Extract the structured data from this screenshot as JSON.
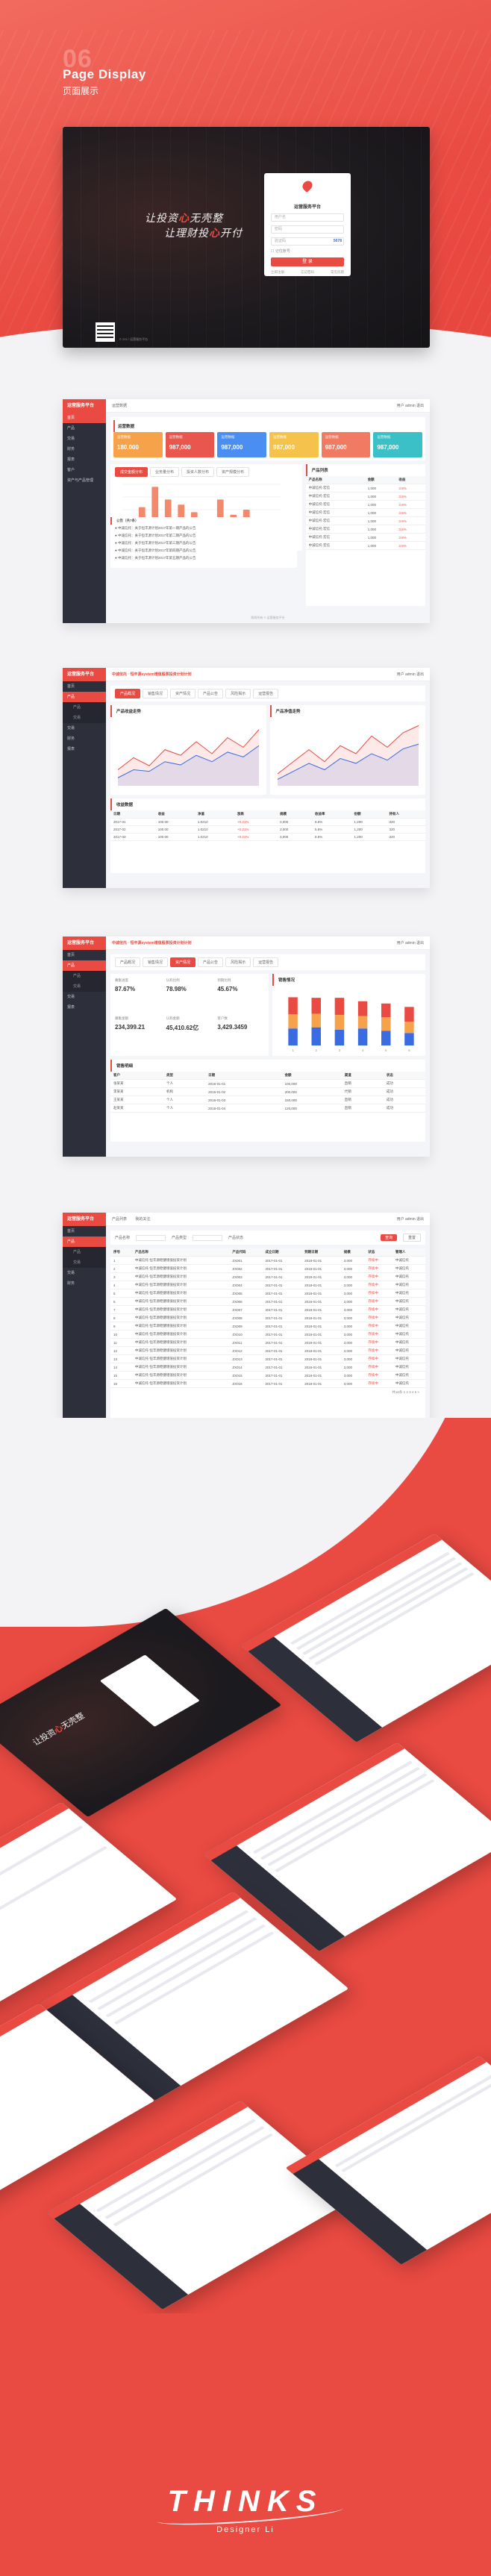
{
  "section": {
    "number": "06",
    "title": "Page Display",
    "subtitle": "页面展示"
  },
  "login": {
    "slogan_line1_a": "让投资",
    "slogan_line1_hl": "心",
    "slogan_line1_b": "无壳整",
    "slogan_line2_a": "让理财投",
    "slogan_line2_hl": "心",
    "slogan_line2_b": "开付",
    "brand": "运营服务平台",
    "username_placeholder": "用户名",
    "password_placeholder": "密码",
    "code_placeholder": "验证码",
    "code_value": "5678",
    "remember_label": "记住账号",
    "login_button": "登 录",
    "link_register": "立即注册",
    "link_forgot": "忘记密码",
    "link_help": "常见问题",
    "copyright": "© 2017 运营服务平台"
  },
  "frame_common": {
    "logo": "运营服务平台",
    "user": "用户 admin  退出",
    "nav": [
      "首页",
      "产品",
      "交易",
      "财务",
      "报表",
      "客户",
      "系统",
      "资产与产品管理"
    ]
  },
  "dashboard": {
    "breadcrumb": "运营数据",
    "stats": [
      {
        "label": "运营数据",
        "value": "180,000",
        "color": "#f5a24b"
      },
      {
        "label": "运营数据",
        "value": "987,000",
        "color": "#e9564d"
      },
      {
        "label": "运营数据",
        "value": "987,000",
        "color": "#4a8ef2"
      },
      {
        "label": "运营数据",
        "value": "987,000",
        "color": "#f5c24b"
      },
      {
        "label": "运营数据",
        "value": "987,000",
        "color": "#f07a62"
      },
      {
        "label": "运营数据",
        "value": "987,000",
        "color": "#3cc0c8"
      }
    ],
    "chart_tabs": [
      "成交金额分布",
      "业务量分布",
      "投资人数分布",
      "资产规模分布"
    ],
    "side_title": "产品列表",
    "side_header": [
      "产品名称",
      "金额",
      "收益"
    ],
    "side_rows": [
      [
        "中诚信托·宏信",
        "1,000",
        "3.6%"
      ],
      [
        "中诚信托·宏信",
        "1,000",
        "3.6%"
      ],
      [
        "中诚信托·宏信",
        "1,000",
        "3.6%"
      ],
      [
        "中诚信托·宏信",
        "1,000",
        "3.6%"
      ],
      [
        "中诚信托·宏信",
        "1,000",
        "3.6%"
      ],
      [
        "中诚信托·宏信",
        "1,000",
        "3.6%"
      ],
      [
        "中诚信托·宏信",
        "1,000",
        "3.6%"
      ],
      [
        "中诚信托·宏信",
        "1,000",
        "3.6%"
      ]
    ],
    "news_title": "公告（共7条）",
    "news": [
      "中诚信托：关于恒丰源计划2017年第一期产品的公告",
      "中诚信托：关于恒丰源计划2017年第二期产品的公告",
      "中诚信托：关于恒丰源计划2017年第三期产品的公告",
      "中诚信托：关于恒丰源计划2017年第四期产品的公告",
      "中诚信托：关于恒丰源计划2017年第五期产品的公告"
    ],
    "footer": "版权所有 © 运营服务平台"
  },
  "chart_data": [
    {
      "type": "bar",
      "categories": [
        "1",
        "2",
        "3",
        "4",
        "5",
        "6",
        "7",
        "8",
        "9",
        "10",
        "11",
        "12"
      ],
      "values": [
        30,
        55,
        95,
        70,
        60,
        45,
        35,
        70,
        40,
        50,
        25,
        15
      ],
      "title": "",
      "ylim": [
        0,
        100
      ]
    },
    {
      "type": "area",
      "x": [
        "1",
        "2",
        "3",
        "4",
        "5",
        "6",
        "7",
        "8",
        "9",
        "10"
      ],
      "series": [
        {
          "values": [
            20,
            35,
            25,
            45,
            38,
            55,
            40,
            60,
            48,
            70
          ]
        },
        {
          "values": [
            10,
            20,
            18,
            30,
            26,
            38,
            30,
            42,
            36,
            50
          ]
        }
      ]
    },
    {
      "type": "area",
      "x": [
        "1",
        "2",
        "3",
        "4",
        "5",
        "6",
        "7",
        "8",
        "9",
        "10"
      ],
      "series": [
        {
          "values": [
            15,
            30,
            45,
            30,
            50,
            40,
            62,
            48,
            66,
            75
          ]
        },
        {
          "values": [
            8,
            18,
            28,
            20,
            34,
            28,
            40,
            32,
            46,
            52
          ]
        }
      ]
    },
    {
      "type": "bar",
      "categories": [
        "1",
        "2",
        "3",
        "4",
        "5",
        "6"
      ],
      "series": [
        {
          "values": [
            30,
            32,
            28,
            30,
            26,
            22
          ],
          "color": "#3b6be0"
        },
        {
          "values": [
            25,
            24,
            26,
            22,
            24,
            20
          ],
          "color": "#f5a24b"
        },
        {
          "values": [
            30,
            28,
            30,
            26,
            24,
            26
          ],
          "color": "#e94a42"
        }
      ],
      "stacked": true,
      "ylim": [
        0,
        100
      ]
    }
  ],
  "product": {
    "title": "中诚信托 · 恒丰源system增值股票投资计划计划",
    "meta": [
      "产品代码",
      "募集中",
      "信托",
      "R3中风险",
      "3,000,000",
      "5.6%"
    ],
    "tabs": [
      "产品概况",
      "销售情况",
      "资产情况",
      "产品公告",
      "风险揭示",
      "运营报告"
    ],
    "tabs_active": 0,
    "chart1_title": "产品收益走势",
    "chart2_title": "产品净值走势",
    "table_title": "收益数据",
    "table_header": [
      "日期",
      "收益",
      "净值",
      "涨跌",
      "规模",
      "收益率",
      "份额",
      "持有人"
    ],
    "table_rows": [
      [
        "2017-01",
        "100.00",
        "1.0210",
        "+0.21%",
        "3,000",
        "5.6%",
        "1,200",
        "320"
      ],
      [
        "2017-02",
        "100.00",
        "1.0210",
        "+0.21%",
        "3,000",
        "5.6%",
        "1,200",
        "320"
      ],
      [
        "2017-03",
        "100.00",
        "1.0210",
        "+0.21%",
        "3,000",
        "5.6%",
        "1,200",
        "320"
      ]
    ]
  },
  "sales": {
    "title": "中诚信托 · 恒丰源system增值股票投资计划计划",
    "tabs": [
      "产品概况",
      "销售情况",
      "资产情况",
      "产品公告",
      "风险揭示",
      "运营报告"
    ],
    "tabs_active": 2,
    "kpis": [
      {
        "label": "募集进度",
        "value": "87.67%"
      },
      {
        "label": "认购比例",
        "value": "78.98%"
      },
      {
        "label": "到期比例",
        "value": "45.67%"
      },
      {
        "label": "募集金额",
        "value": "234,399.21"
      },
      {
        "label": "认购金额",
        "value": "45,410.62亿"
      },
      {
        "label": "客户数",
        "value": "3,429.3459"
      }
    ],
    "chart_title": "销售情况",
    "table_title": "销售明细",
    "table_header": [
      "客户",
      "类型",
      "日期",
      "金额",
      "渠道",
      "状态"
    ],
    "table_rows": [
      [
        "张某某",
        "个人",
        "2016-01-01",
        "100,000",
        "直销",
        "成功"
      ],
      [
        "李某某",
        "机构",
        "2016-01-02",
        "200,000",
        "代销",
        "成功"
      ],
      [
        "王某某",
        "个人",
        "2016-01-03",
        "150,000",
        "直销",
        "成功"
      ],
      [
        "赵某某",
        "个人",
        "2016-01-04",
        "120,000",
        "直销",
        "成功"
      ]
    ]
  },
  "list": {
    "tabs": [
      "产品列表",
      "我的关注"
    ],
    "filters": [
      "产品名称",
      "产品类型",
      "产品状态"
    ],
    "search_button": "查询",
    "reset_button": "重置",
    "table_header": [
      "序号",
      "产品名称",
      "产品代码",
      "成立日期",
      "到期日期",
      "规模",
      "状态",
      "管理人"
    ],
    "table_rows": [
      [
        "1",
        "中诚信托·恒丰源稳健增值投资计划",
        "ZX001",
        "2017-01-01",
        "2018-01-01",
        "3,000",
        "存续中",
        "中诚信托"
      ],
      [
        "2",
        "中诚信托·恒丰源稳健增值投资计划",
        "ZX002",
        "2017-01-01",
        "2018-01-01",
        "3,000",
        "存续中",
        "中诚信托"
      ],
      [
        "3",
        "中诚信托·恒丰源稳健增值投资计划",
        "ZX003",
        "2017-01-01",
        "2018-01-01",
        "3,000",
        "存续中",
        "中诚信托"
      ],
      [
        "4",
        "中诚信托·恒丰源稳健增值投资计划",
        "ZX004",
        "2017-01-01",
        "2018-01-01",
        "3,000",
        "存续中",
        "中诚信托"
      ],
      [
        "5",
        "中诚信托·恒丰源稳健增值投资计划",
        "ZX005",
        "2017-01-01",
        "2018-01-01",
        "3,000",
        "存续中",
        "中诚信托"
      ],
      [
        "6",
        "中诚信托·恒丰源稳健增值投资计划",
        "ZX006",
        "2017-01-01",
        "2018-01-01",
        "3,000",
        "存续中",
        "中诚信托"
      ],
      [
        "7",
        "中诚信托·恒丰源稳健增值投资计划",
        "ZX007",
        "2017-01-01",
        "2018-01-01",
        "3,000",
        "存续中",
        "中诚信托"
      ],
      [
        "8",
        "中诚信托·恒丰源稳健增值投资计划",
        "ZX008",
        "2017-01-01",
        "2018-01-01",
        "3,000",
        "存续中",
        "中诚信托"
      ],
      [
        "9",
        "中诚信托·恒丰源稳健增值投资计划",
        "ZX009",
        "2017-01-01",
        "2018-01-01",
        "3,000",
        "存续中",
        "中诚信托"
      ],
      [
        "10",
        "中诚信托·恒丰源稳健增值投资计划",
        "ZX010",
        "2017-01-01",
        "2018-01-01",
        "3,000",
        "存续中",
        "中诚信托"
      ],
      [
        "11",
        "中诚信托·恒丰源稳健增值投资计划",
        "ZX011",
        "2017-01-01",
        "2018-01-01",
        "3,000",
        "存续中",
        "中诚信托"
      ],
      [
        "12",
        "中诚信托·恒丰源稳健增值投资计划",
        "ZX012",
        "2017-01-01",
        "2018-01-01",
        "3,000",
        "存续中",
        "中诚信托"
      ],
      [
        "13",
        "中诚信托·恒丰源稳健增值投资计划",
        "ZX013",
        "2017-01-01",
        "2018-01-01",
        "3,000",
        "存续中",
        "中诚信托"
      ],
      [
        "14",
        "中诚信托·恒丰源稳健增值投资计划",
        "ZX014",
        "2017-01-01",
        "2018-01-01",
        "3,000",
        "存续中",
        "中诚信托"
      ],
      [
        "15",
        "中诚信托·恒丰源稳健增值投资计划",
        "ZX015",
        "2017-01-01",
        "2018-01-01",
        "3,000",
        "存续中",
        "中诚信托"
      ],
      [
        "16",
        "中诚信托·恒丰源稳健增值投资计划",
        "ZX016",
        "2017-01-01",
        "2018-01-01",
        "3,000",
        "存续中",
        "中诚信托"
      ]
    ],
    "pagination": "共16条  1 2 3 4 5 >"
  },
  "footer": {
    "brand": "THINKS",
    "signature": "Designer Li"
  },
  "colors": {
    "accent": "#e94a42",
    "sidebar": "#2d2f3b",
    "page_bg": "#f3f3f5"
  }
}
